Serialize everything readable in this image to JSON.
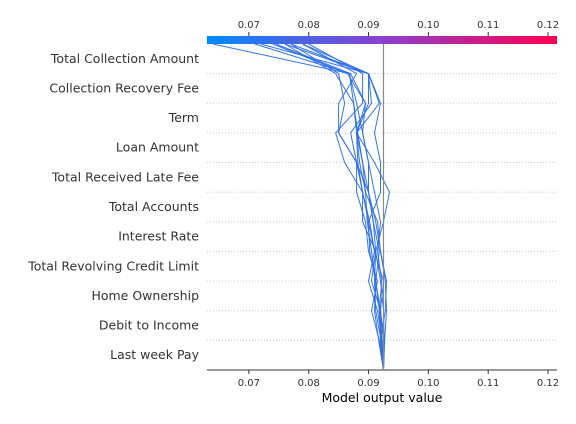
{
  "chart_data": {
    "type": "line",
    "subtype": "decision-plot",
    "xlabel": "Model output value",
    "xlim": [
      0.063,
      0.1215
    ],
    "x_ticks": [
      0.07,
      0.08,
      0.09,
      0.1,
      0.11,
      0.12
    ],
    "x_tick_labels": [
      "0.07",
      "0.08",
      "0.09",
      "0.10",
      "0.11",
      "0.12"
    ],
    "base_value": 0.0925,
    "features": [
      "Total Collection Amount",
      "Collection Recovery Fee",
      "Term",
      "Loan Amount",
      "Total Received Late Fee",
      "Total Accounts",
      "Interest Rate",
      "Total Revolving Credit Limit",
      "Home Ownership",
      "Debit to Income",
      "Last week Pay"
    ],
    "colorbar": {
      "low_color": "#008bfb",
      "mid_color": "#8b3fd0",
      "high_color": "#ff0052"
    },
    "line_color": "#2b6ee8",
    "series": [
      {
        "values": [
          0.0925,
          0.0922,
          0.0918,
          0.0912,
          0.0905,
          0.0898,
          0.0895,
          0.089,
          0.0882,
          0.0875,
          0.0868,
          0.064
        ]
      },
      {
        "values": [
          0.0925,
          0.092,
          0.0918,
          0.0922,
          0.0915,
          0.092,
          0.091,
          0.09,
          0.089,
          0.088,
          0.0868,
          0.071
        ]
      },
      {
        "values": [
          0.0925,
          0.0926,
          0.0925,
          0.092,
          0.0912,
          0.0925,
          0.0935,
          0.091,
          0.088,
          0.0918,
          0.09,
          0.076
        ]
      },
      {
        "values": [
          0.0925,
          0.0922,
          0.092,
          0.0912,
          0.0918,
          0.0908,
          0.09,
          0.09,
          0.089,
          0.0895,
          0.0865,
          0.074
        ]
      },
      {
        "values": [
          0.0925,
          0.0927,
          0.093,
          0.0928,
          0.092,
          0.0912,
          0.09,
          0.088,
          0.087,
          0.0905,
          0.09,
          0.077
        ]
      },
      {
        "values": [
          0.0925,
          0.0918,
          0.0905,
          0.0915,
          0.09,
          0.0895,
          0.088,
          0.088,
          0.085,
          0.085,
          0.088,
          0.079
        ]
      },
      {
        "values": [
          0.0925,
          0.0923,
          0.0915,
          0.09,
          0.091,
          0.0902,
          0.089,
          0.086,
          0.0845,
          0.089,
          0.089,
          0.08
        ]
      },
      {
        "values": [
          0.0925,
          0.092,
          0.0928,
          0.093,
          0.092,
          0.0915,
          0.0895,
          0.0885,
          0.088,
          0.0875,
          0.0845,
          0.076
        ]
      },
      {
        "values": [
          0.0925,
          0.0925,
          0.092,
          0.0905,
          0.0912,
          0.089,
          0.089,
          0.088,
          0.085,
          0.086,
          0.085,
          0.077
        ]
      },
      {
        "values": [
          0.0925,
          0.0921,
          0.0912,
          0.091,
          0.0912,
          0.0908,
          0.09,
          0.089,
          0.088,
          0.09,
          0.09,
          0.079
        ]
      },
      {
        "values": [
          0.0925,
          0.0926,
          0.092,
          0.0925,
          0.091,
          0.09,
          0.089,
          0.0882,
          0.088,
          0.0895,
          0.087,
          0.0745
        ]
      },
      {
        "values": [
          0.0925,
          0.0917,
          0.091,
          0.0912,
          0.0902,
          0.09,
          0.092,
          0.092,
          0.091,
          0.092,
          0.09,
          0.072
        ]
      }
    ]
  }
}
